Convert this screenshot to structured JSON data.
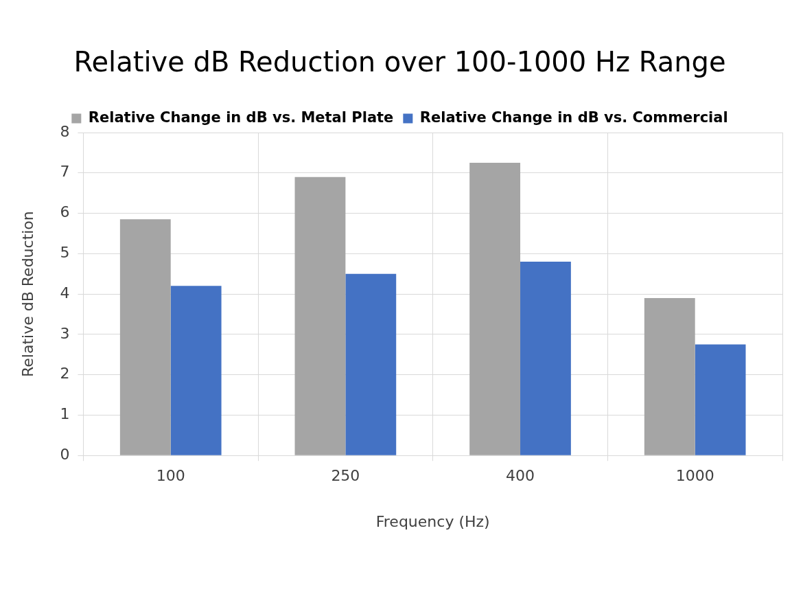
{
  "chart_data": {
    "type": "bar",
    "title": "Relative dB Reduction over 100-1000 Hz Range",
    "x_label": "Frequency (Hz)",
    "y_label": "Relative dB Reduction",
    "categories": [
      "100",
      "250",
      "400",
      "1000"
    ],
    "series": [
      {
        "name": "Relative Change in dB vs. Metal Plate",
        "color": "#a5a5a5",
        "values": [
          5.85,
          6.9,
          7.25,
          3.9
        ]
      },
      {
        "name": "Relative Change in dB vs. Commercial",
        "color": "#4472c4",
        "values": [
          4.2,
          4.5,
          4.8,
          2.75
        ]
      }
    ],
    "ylim": [
      0,
      8
    ],
    "yticks": [
      0,
      1,
      2,
      3,
      4,
      5,
      6,
      7,
      8
    ],
    "grid": true,
    "legend": "top"
  }
}
